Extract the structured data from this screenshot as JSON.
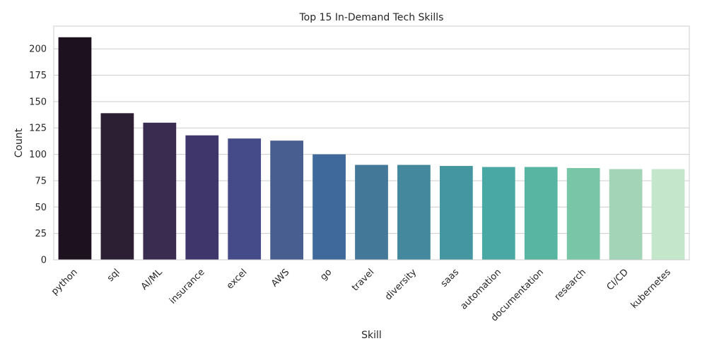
{
  "chart_data": {
    "type": "bar",
    "title": "Top 15 In-Demand Tech Skills",
    "xlabel": "Skill",
    "ylabel": "Count",
    "categories": [
      "python",
      "sql",
      "AI/ML",
      "insurance",
      "excel",
      "AWS",
      "go",
      "travel",
      "diversity",
      "saas",
      "automation",
      "documentation",
      "research",
      "CI/CD",
      "kubernetes"
    ],
    "values": [
      211,
      139,
      130,
      118,
      115,
      113,
      100,
      90,
      90,
      89,
      88,
      88,
      87,
      86,
      86
    ],
    "colors": [
      "#1e111f",
      "#2c1f34",
      "#3a2c51",
      "#3f376c",
      "#454a88",
      "#485d90",
      "#40699b",
      "#437898",
      "#43889d",
      "#4496a0",
      "#49a8a3",
      "#58b5a2",
      "#78c6a7",
      "#a4d4b8",
      "#c4e6cb"
    ],
    "yticks": [
      0,
      25,
      50,
      75,
      100,
      125,
      150,
      175,
      200
    ],
    "ylim": [
      0,
      221.55
    ],
    "grid": "horizontal",
    "legend": "none"
  }
}
